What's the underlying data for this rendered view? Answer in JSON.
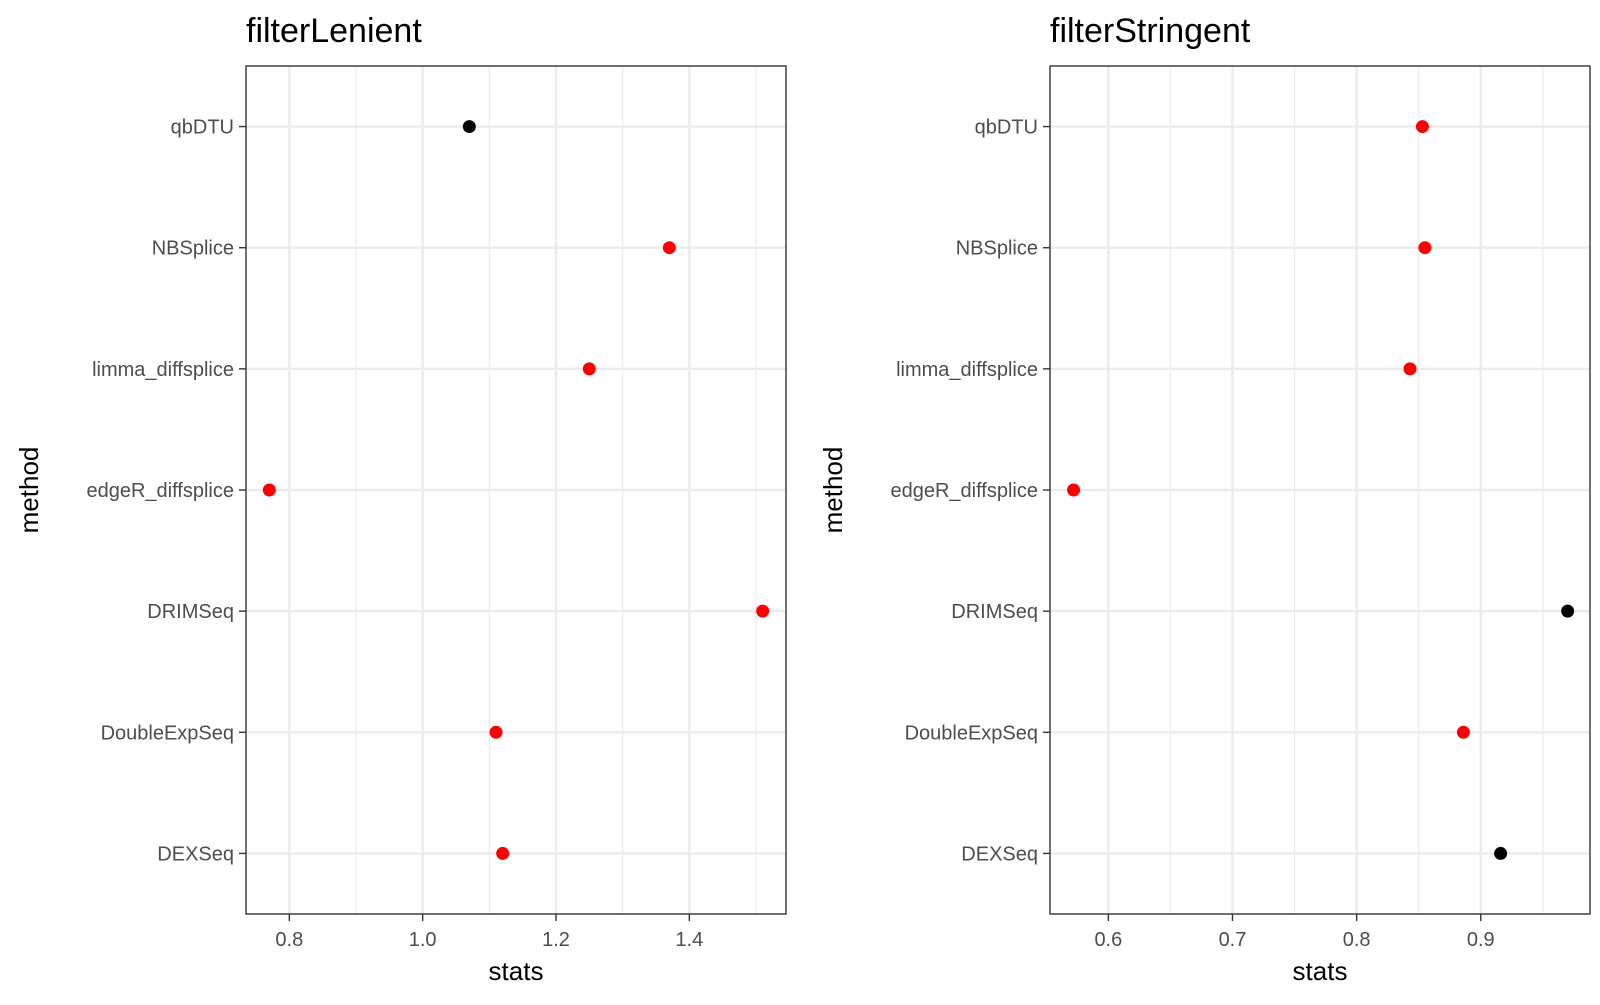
{
  "chart_data": [
    {
      "type": "scatter",
      "title": "filterLenient",
      "xlabel": "stats",
      "ylabel": "method",
      "categories": [
        "qbDTU",
        "NBSplice",
        "limma_diffsplice",
        "edgeR_diffsplice",
        "DRIMSeq",
        "DoubleExpSeq",
        "DEXSeq"
      ],
      "xlim": [
        0.735,
        1.545
      ],
      "xticks": [
        0.8,
        1.0,
        1.2,
        1.4
      ],
      "xtick_labels": [
        "0.8",
        "1.0",
        "1.2",
        "1.4"
      ],
      "grid": true,
      "points": [
        {
          "method": "qbDTU",
          "value": 1.07,
          "color": "#000000"
        },
        {
          "method": "NBSplice",
          "value": 1.37,
          "color": "#ff0000"
        },
        {
          "method": "limma_diffsplice",
          "value": 1.25,
          "color": "#ff0000"
        },
        {
          "method": "edgeR_diffsplice",
          "value": 0.77,
          "color": "#ff0000"
        },
        {
          "method": "DRIMSeq",
          "value": 1.51,
          "color": "#ff0000"
        },
        {
          "method": "DoubleExpSeq",
          "value": 1.11,
          "color": "#ff0000"
        },
        {
          "method": "DEXSeq",
          "value": 1.12,
          "color": "#ff0000"
        }
      ]
    },
    {
      "type": "scatter",
      "title": "filterStringent",
      "xlabel": "stats",
      "ylabel": "method",
      "categories": [
        "qbDTU",
        "NBSplice",
        "limma_diffsplice",
        "edgeR_diffsplice",
        "DRIMSeq",
        "DoubleExpSeq",
        "DEXSeq"
      ],
      "xlim": [
        0.553,
        0.988
      ],
      "xticks": [
        0.6,
        0.7,
        0.8,
        0.9
      ],
      "xtick_labels": [
        "0.6",
        "0.7",
        "0.8",
        "0.9"
      ],
      "grid": true,
      "points": [
        {
          "method": "qbDTU",
          "value": 0.853,
          "color": "#ff0000"
        },
        {
          "method": "NBSplice",
          "value": 0.855,
          "color": "#ff0000"
        },
        {
          "method": "limma_diffsplice",
          "value": 0.843,
          "color": "#ff0000"
        },
        {
          "method": "edgeR_diffsplice",
          "value": 0.572,
          "color": "#ff0000"
        },
        {
          "method": "DRIMSeq",
          "value": 0.97,
          "color": "#000000"
        },
        {
          "method": "DoubleExpSeq",
          "value": 0.886,
          "color": "#ff0000"
        },
        {
          "method": "DEXSeq",
          "value": 0.916,
          "color": "#000000"
        }
      ]
    }
  ]
}
